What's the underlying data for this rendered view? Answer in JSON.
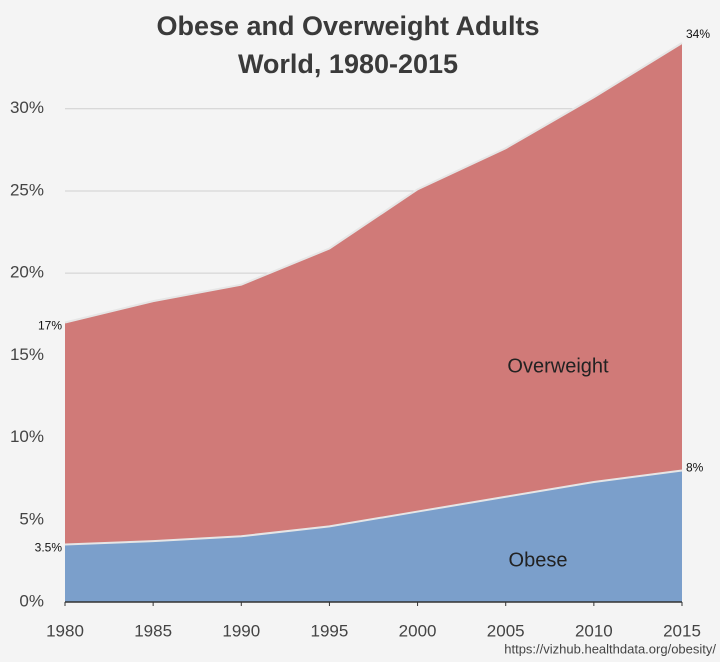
{
  "chart_data": {
    "type": "area",
    "title": "Obese and Overweight Adults",
    "subtitle": "World, 1980-2015",
    "x": [
      1980,
      1985,
      1990,
      1995,
      2000,
      2005,
      2010,
      2015
    ],
    "series": [
      {
        "name": "Overweight",
        "color": "#d07a78",
        "values": [
          17,
          18.3,
          19.3,
          21.5,
          25.1,
          27.6,
          30.7,
          34
        ],
        "value_labels": [
          "17%",
          null,
          null,
          null,
          null,
          null,
          null,
          "34%"
        ]
      },
      {
        "name": "Obese",
        "color": "#7b9fcb",
        "values": [
          3.5,
          3.7,
          4.0,
          4.6,
          5.5,
          6.4,
          7.3,
          8
        ],
        "value_labels": [
          "3.5%",
          null,
          null,
          null,
          null,
          null,
          null,
          "8%"
        ]
      }
    ],
    "xlim": [
      1980,
      2015
    ],
    "xticks": [
      1980,
      1985,
      1990,
      1995,
      2000,
      2005,
      2010,
      2015
    ],
    "ylim": [
      0,
      34
    ],
    "yticks": [
      {
        "value": 0,
        "label": "0%"
      },
      {
        "value": 5,
        "label": "5%"
      },
      {
        "value": 10,
        "label": "10%"
      },
      {
        "value": 15,
        "label": "15%"
      },
      {
        "value": 20,
        "label": "20%"
      },
      {
        "value": 25,
        "label": "25%"
      },
      {
        "value": 30,
        "label": "30%"
      }
    ],
    "grid": true,
    "source": "https://vizhub.healthdata.org/obesity/"
  }
}
